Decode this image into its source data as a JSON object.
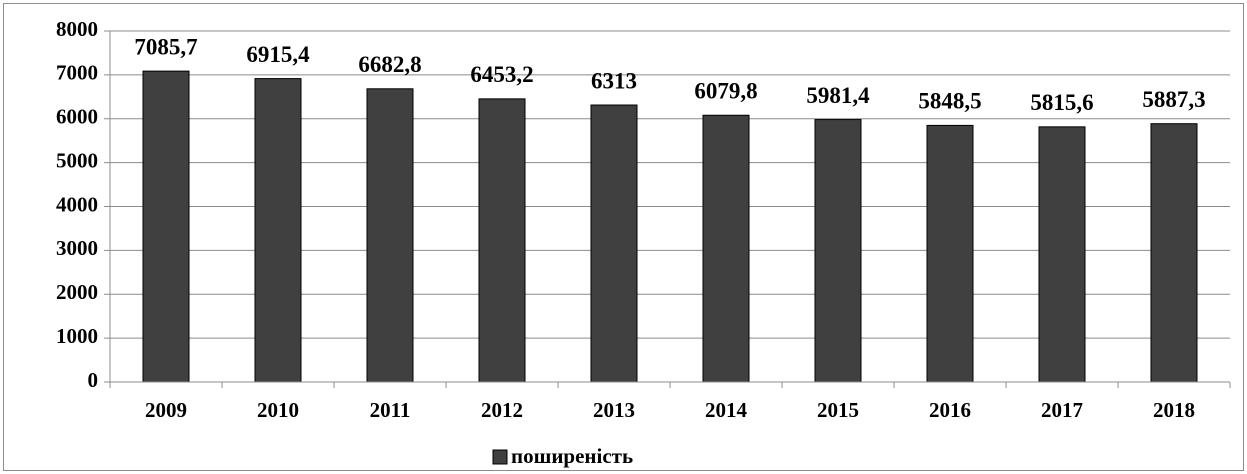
{
  "chart_data": {
    "type": "bar",
    "categories": [
      "2009",
      "2010",
      "2011",
      "2012",
      "2013",
      "2014",
      "2015",
      "2016",
      "2017",
      "2018"
    ],
    "series": [
      {
        "name": "поширеність",
        "color": "#404040",
        "values": [
          7085.7,
          6915.4,
          6682.8,
          6453.2,
          6313,
          6079.8,
          5981.4,
          5848.5,
          5815.6,
          5887.3
        ],
        "value_labels": [
          "7085,7",
          "6915,4",
          "6682,8",
          "6453,2",
          "6313",
          "6079,8",
          "5981,4",
          "5848,5",
          "5815,6",
          "5887,3"
        ]
      }
    ],
    "ylim": [
      0,
      8000
    ],
    "yticks": [
      0,
      1000,
      2000,
      3000,
      4000,
      5000,
      6000,
      7000,
      8000
    ],
    "grid": true,
    "legend": "bottom"
  }
}
